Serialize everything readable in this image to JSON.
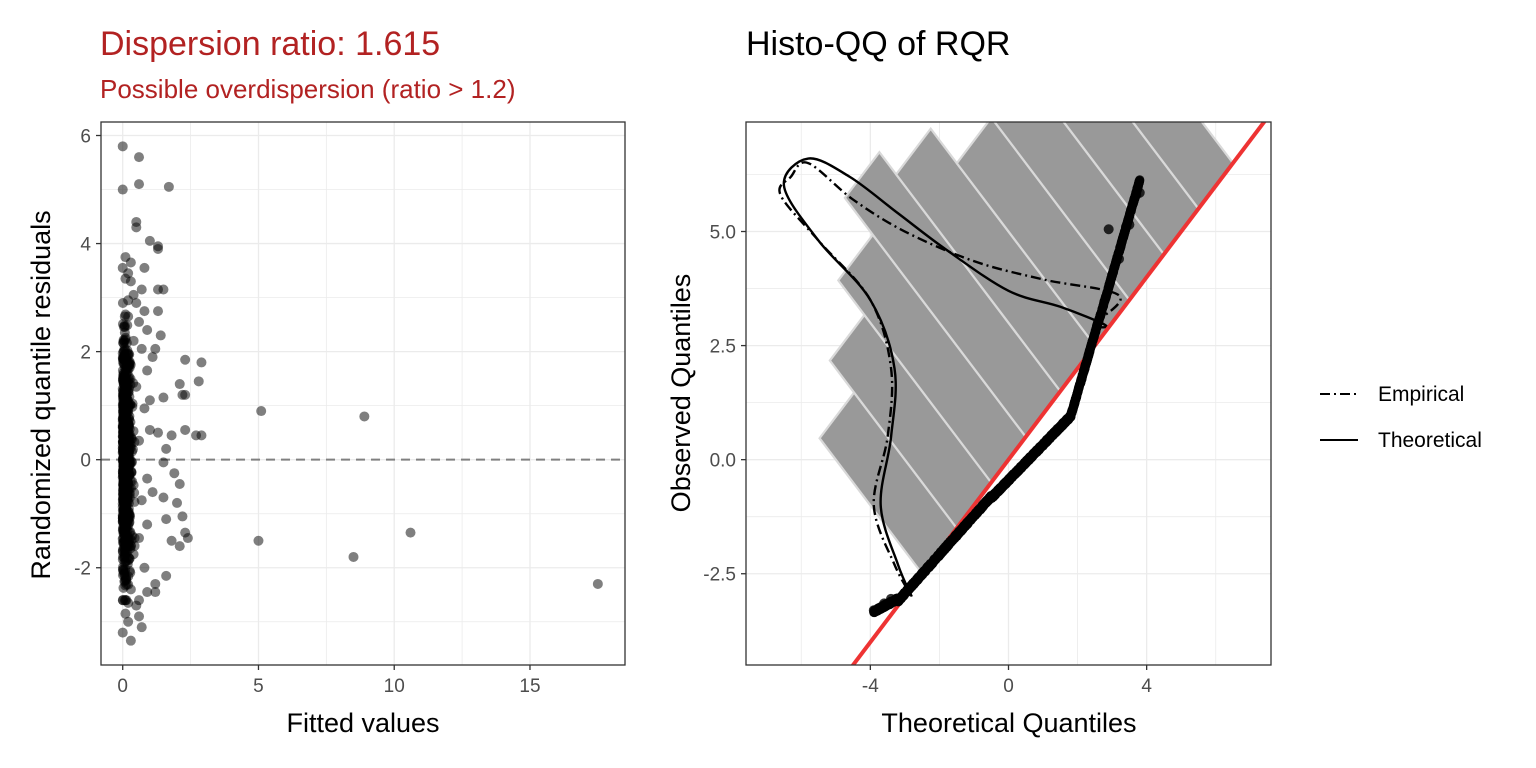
{
  "chart_data": [
    {
      "type": "scatter",
      "title": "Dispersion ratio: 1.615",
      "subtitle": "Possible overdispersion (ratio > 1.2)",
      "xlabel": "Fitted values",
      "ylabel": "Randomized quantile residuals",
      "xlim": [
        -0.8,
        18.5
      ],
      "ylim": [
        -3.8,
        6.25
      ],
      "x_ticks": [
        0,
        5,
        10,
        15
      ],
      "x_tick_labels": [
        "0",
        "5",
        "10",
        "15"
      ],
      "y_ticks": [
        -2,
        0,
        2,
        4,
        6
      ],
      "y_tick_labels": [
        "-2",
        "0",
        "2",
        "4",
        "6"
      ],
      "reference_line": {
        "y": 0,
        "style": "dashed",
        "color": "#808080"
      },
      "grid": true,
      "point_color": "#000000",
      "point_opacity": 0.5,
      "points": [
        [
          0.0,
          5.8
        ],
        [
          0.6,
          5.6
        ],
        [
          0.0,
          5.0
        ],
        [
          0.6,
          5.1
        ],
        [
          1.7,
          5.05
        ],
        [
          0.5,
          4.4
        ],
        [
          0.5,
          4.3
        ],
        [
          1.0,
          4.05
        ],
        [
          1.3,
          3.95
        ],
        [
          1.3,
          3.9
        ],
        [
          0.1,
          3.75
        ],
        [
          0.3,
          3.65
        ],
        [
          0.0,
          3.55
        ],
        [
          0.2,
          3.45
        ],
        [
          0.8,
          3.55
        ],
        [
          0.3,
          3.3
        ],
        [
          0.7,
          3.15
        ],
        [
          1.3,
          3.15
        ],
        [
          1.5,
          3.15
        ],
        [
          0.2,
          2.95
        ],
        [
          0.5,
          2.9
        ],
        [
          1.3,
          2.75
        ],
        [
          0.6,
          2.55
        ],
        [
          1.4,
          2.3
        ],
        [
          0.9,
          2.4
        ],
        [
          1.2,
          2.05
        ],
        [
          2.3,
          1.85
        ],
        [
          2.9,
          1.8
        ],
        [
          2.8,
          1.45
        ],
        [
          2.1,
          1.4
        ],
        [
          1.0,
          1.1
        ],
        [
          1.5,
          1.15
        ],
        [
          2.2,
          1.2
        ],
        [
          2.3,
          1.2
        ],
        [
          5.1,
          0.9
        ],
        [
          8.9,
          0.8
        ],
        [
          2.3,
          0.55
        ],
        [
          2.7,
          0.45
        ],
        [
          2.9,
          0.45
        ],
        [
          1.8,
          0.45
        ],
        [
          1.3,
          0.5
        ],
        [
          1.6,
          0.2
        ],
        [
          1.5,
          -0.05
        ],
        [
          1.9,
          -0.25
        ],
        [
          2.1,
          -0.45
        ],
        [
          1.1,
          -0.6
        ],
        [
          1.5,
          -0.7
        ],
        [
          2.0,
          -0.8
        ],
        [
          2.2,
          -1.05
        ],
        [
          1.6,
          -1.1
        ],
        [
          2.3,
          -1.35
        ],
        [
          2.4,
          -1.45
        ],
        [
          1.8,
          -1.5
        ],
        [
          2.1,
          -1.6
        ],
        [
          5.0,
          -1.5
        ],
        [
          10.6,
          -1.35
        ],
        [
          8.5,
          -1.8
        ],
        [
          17.5,
          -2.3
        ],
        [
          1.6,
          -2.15
        ],
        [
          1.2,
          -2.3
        ],
        [
          0.9,
          -2.45
        ],
        [
          1.2,
          -2.45
        ],
        [
          0.6,
          -2.6
        ],
        [
          0.2,
          -2.65
        ],
        [
          0.5,
          -2.7
        ],
        [
          0.6,
          -2.9
        ],
        [
          0.2,
          -3.0
        ],
        [
          0.7,
          -3.1
        ],
        [
          0.0,
          -3.2
        ],
        [
          0.3,
          -3.35
        ],
        [
          0.1,
          -2.85
        ],
        [
          0.8,
          -2.0
        ],
        [
          0.4,
          -1.75
        ],
        [
          0.9,
          -1.2
        ],
        [
          0.7,
          -0.75
        ],
        [
          0.6,
          0.35
        ],
        [
          0.8,
          0.95
        ],
        [
          0.5,
          1.35
        ],
        [
          0.9,
          1.65
        ],
        [
          0.7,
          2.05
        ],
        [
          0.4,
          2.2
        ],
        [
          0.2,
          2.65
        ],
        [
          0.9,
          -0.35
        ],
        [
          1.0,
          0.55
        ],
        [
          0.3,
          -2.4
        ],
        [
          0.4,
          3.05
        ],
        [
          0.1,
          3.35
        ],
        [
          0.6,
          -1.45
        ],
        [
          1.1,
          1.9
        ],
        [
          0.8,
          2.75
        ]
      ],
      "dense_band": {
        "x_range": [
          0.0,
          0.45
        ],
        "y_range": [
          -2.6,
          2.9
        ],
        "count": 900
      }
    },
    {
      "type": "histogram_qq",
      "title": "Histo-QQ of RQR",
      "xlabel": "Theoretical Quantiles",
      "ylabel": "Observed Quantiles",
      "xlim": [
        -7.6,
        7.6
      ],
      "ylim": [
        -4.5,
        7.4
      ],
      "x_ticks": [
        -4,
        0,
        4
      ],
      "x_tick_labels": [
        "-4",
        "0",
        "4"
      ],
      "y_ticks": [
        -2.5,
        0.0,
        2.5,
        5.0
      ],
      "y_tick_labels": [
        "-2.5",
        "0.0",
        "2.5",
        "5.0"
      ],
      "grid": true,
      "reference_line": {
        "color": "#EE3333",
        "slope": 1,
        "intercept": 0
      },
      "histogram_bins": [
        {
          "lo": -2.5,
          "hi": -1.5,
          "h": 0.55
        },
        {
          "lo": -1.5,
          "hi": -0.5,
          "h": 0.68
        },
        {
          "lo": -0.5,
          "hi": 0.5,
          "h": 0.82
        },
        {
          "lo": 0.5,
          "hi": 1.5,
          "h": 0.97
        },
        {
          "lo": 1.5,
          "hi": 2.5,
          "h": 0.88
        },
        {
          "lo": 2.5,
          "hi": 3.5,
          "h": 0.74
        },
        {
          "lo": 3.5,
          "hi": 4.5,
          "h": 0.97
        },
        {
          "lo": 4.5,
          "hi": 5.5,
          "h": 0.82
        },
        {
          "lo": 5.5,
          "hi": 6.5,
          "h": 0.86
        }
      ],
      "histogram_color": "#999999",
      "density_curves": [
        {
          "name": "Empirical",
          "style": "dashdot",
          "points": [
            [
              2.5,
              3.0
            ],
            [
              3.2,
              3.6
            ],
            [
              1.0,
              3.95
            ],
            [
              -1.0,
              4.35
            ],
            [
              -3.0,
              5.0
            ],
            [
              -4.5,
              5.7
            ],
            [
              -5.8,
              6.5
            ],
            [
              -6.3,
              6.2
            ],
            [
              -6.6,
              5.8
            ],
            [
              -5.5,
              4.8
            ],
            [
              -4.0,
              3.5
            ],
            [
              -3.4,
              2.0
            ],
            [
              -3.5,
              0.5
            ],
            [
              -3.9,
              -1.0
            ],
            [
              -3.3,
              -2.3
            ],
            [
              -2.8,
              -3.0
            ]
          ]
        },
        {
          "name": "Theoretical",
          "style": "solid",
          "points": [
            [
              2.5,
              2.9
            ],
            [
              2.8,
              2.95
            ],
            [
              1.5,
              3.35
            ],
            [
              0.0,
              3.7
            ],
            [
              -1.8,
              4.6
            ],
            [
              -3.2,
              5.4
            ],
            [
              -4.6,
              6.2
            ],
            [
              -5.8,
              6.6
            ],
            [
              -6.5,
              6.0
            ],
            [
              -5.5,
              4.8
            ],
            [
              -4.0,
              3.5
            ],
            [
              -3.3,
              2.0
            ],
            [
              -3.4,
              0.5
            ],
            [
              -3.7,
              -1.0
            ],
            [
              -3.2,
              -2.3
            ],
            [
              -2.8,
              -3.0
            ]
          ]
        }
      ],
      "qq_points": {
        "x_range": [
          -3.9,
          3.8
        ],
        "count": 2000
      },
      "qq_tail_points": [
        [
          -3.9,
          -3.3
        ],
        [
          -3.6,
          -3.15
        ],
        [
          -3.4,
          -3.05
        ],
        [
          3.0,
          4.05
        ],
        [
          3.2,
          4.4
        ],
        [
          3.4,
          5.1
        ],
        [
          3.5,
          5.15
        ],
        [
          3.8,
          5.85
        ],
        [
          3.7,
          5.8
        ],
        [
          2.9,
          5.05
        ]
      ],
      "legend": {
        "position": "right",
        "entries": [
          "Empirical",
          "Theoretical"
        ]
      }
    }
  ],
  "legend_items": [
    {
      "label": "Empirical",
      "style": "dashdot"
    },
    {
      "label": "Theoretical",
      "style": "solid"
    }
  ]
}
